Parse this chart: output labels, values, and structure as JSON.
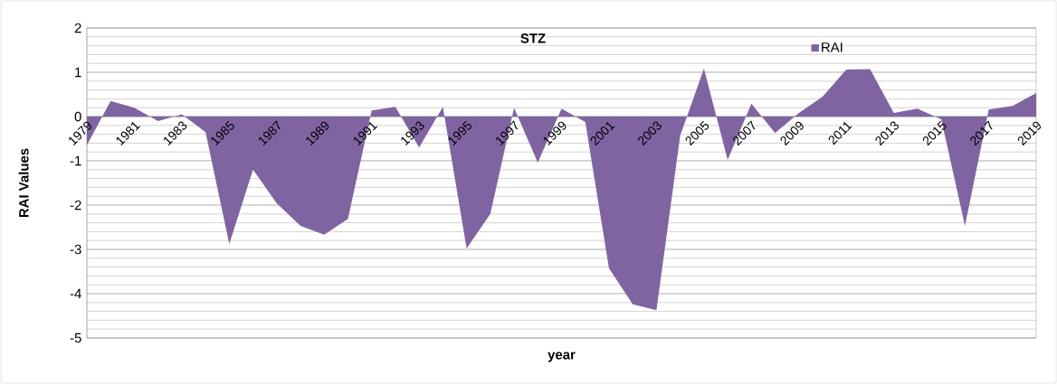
{
  "chart_data": {
    "type": "area",
    "title": "STZ",
    "xlabel": "year",
    "ylabel": "RAI Values",
    "categories": [
      "1979",
      null,
      "1981",
      null,
      "1983",
      null,
      "1985",
      null,
      "1987",
      null,
      "1989",
      null,
      "1991",
      null,
      "1993",
      null,
      "1995",
      null,
      "1997",
      null,
      "1999",
      null,
      "2001",
      null,
      "2003",
      null,
      "2005",
      null,
      "2007",
      null,
      "2009",
      null,
      "2011",
      null,
      "2013",
      null,
      "2015",
      null,
      "2017",
      null,
      "2019"
    ],
    "series": [
      {
        "name": "RAI",
        "color": "#8064a2",
        "values": [
          -0.65,
          0.35,
          0.2,
          -0.1,
          0.05,
          -0.35,
          -2.88,
          -1.2,
          -1.96,
          -2.47,
          -2.67,
          -2.31,
          0.14,
          0.22,
          -0.7,
          0.22,
          -2.98,
          -2.2,
          0.2,
          -1.04,
          0.18,
          -0.12,
          -3.43,
          -4.24,
          -4.37,
          -0.43,
          1.08,
          -0.98,
          0.29,
          -0.37,
          0.08,
          0.45,
          1.06,
          1.07,
          0.08,
          0.18,
          -0.06,
          -2.47,
          0.16,
          0.24,
          0.53
        ]
      }
    ],
    "ylim": [
      -5,
      2
    ],
    "yticks": [
      -5,
      -4,
      -3,
      -2,
      -1,
      0,
      1,
      2
    ],
    "grid": "y",
    "legend": "top right"
  }
}
